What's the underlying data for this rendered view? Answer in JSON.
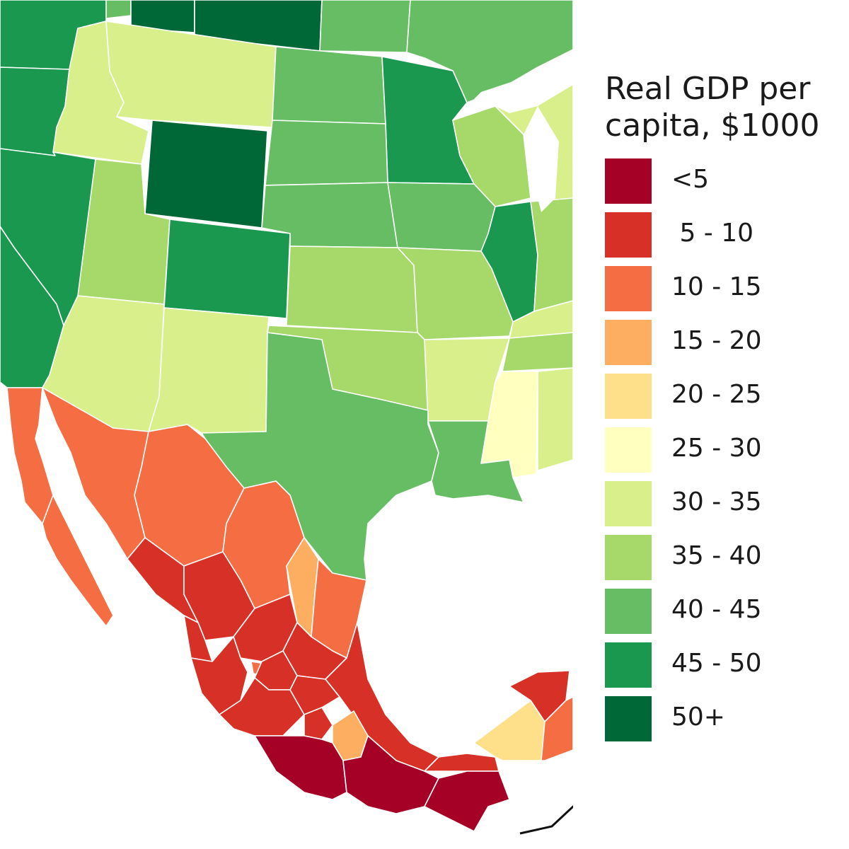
{
  "legend": {
    "title": "Real GDP per\ncapita, $1000",
    "classes": [
      {
        "label": "<5",
        "color": "#a50026"
      },
      {
        "label": " 5 - 10",
        "color": "#d73027"
      },
      {
        "label": "10 - 15",
        "color": "#f46d43"
      },
      {
        "label": "15 - 20",
        "color": "#fdae61"
      },
      {
        "label": "20 - 25",
        "color": "#fee08b"
      },
      {
        "label": "25 - 30",
        "color": "#ffffbf"
      },
      {
        "label": "30 - 35",
        "color": "#d9ef8b"
      },
      {
        "label": "35 - 40",
        "color": "#a6d96a"
      },
      {
        "label": "40 - 45",
        "color": "#66bd63"
      },
      {
        "label": "45 - 50",
        "color": "#1a9850"
      },
      {
        "label": "50+",
        "color": "#006837"
      }
    ]
  },
  "colors": {
    "background": "#ffffff",
    "water": "#ffffff",
    "borders": "#ffffff"
  }
}
